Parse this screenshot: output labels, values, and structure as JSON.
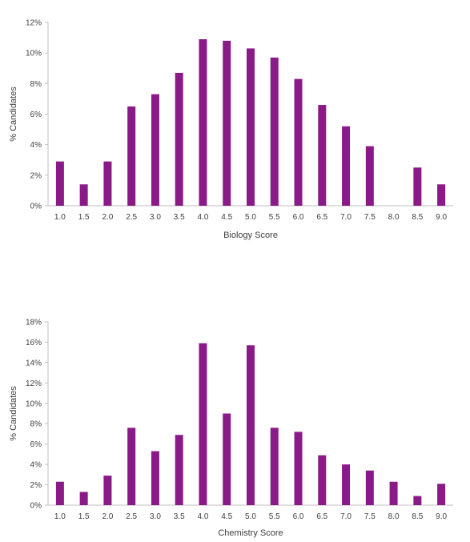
{
  "chart_data": [
    {
      "type": "bar",
      "xlabel": "Biology Score",
      "ylabel": "% Candidates",
      "categories": [
        "1.0",
        "1.5",
        "2.0",
        "2.5",
        "3.0",
        "3.5",
        "4.0",
        "4.5",
        "5.0",
        "5.5",
        "6.0",
        "6.5",
        "7.0",
        "7.5",
        "8.0",
        "8.5",
        "9.0"
      ],
      "values": [
        2.9,
        1.4,
        2.9,
        6.5,
        7.3,
        8.7,
        10.9,
        10.8,
        10.3,
        9.7,
        8.3,
        6.6,
        5.2,
        3.9,
        0,
        2.5,
        1.4
      ],
      "ylim": [
        0,
        12
      ],
      "yticks": [
        0,
        2,
        4,
        6,
        8,
        10,
        12
      ],
      "ytick_labels": [
        "0%",
        "2%",
        "4%",
        "6%",
        "8%",
        "10%",
        "12%"
      ],
      "color": "#8B1A89",
      "grid": false,
      "legend": "none"
    },
    {
      "type": "bar",
      "xlabel": "Chemistry Score",
      "ylabel": "% Candidates",
      "categories": [
        "1.0",
        "1.5",
        "2.0",
        "2.5",
        "3.0",
        "3.5",
        "4.0",
        "4.5",
        "5.0",
        "5.5",
        "6.0",
        "6.5",
        "7.0",
        "7.5",
        "8.0",
        "8.5",
        "9.0"
      ],
      "values": [
        2.3,
        1.3,
        2.9,
        7.6,
        5.3,
        6.9,
        15.9,
        9.0,
        15.7,
        7.6,
        7.2,
        4.9,
        4.0,
        3.4,
        2.3,
        0.9,
        2.1
      ],
      "ylim": [
        0,
        18
      ],
      "yticks": [
        0,
        2,
        4,
        6,
        8,
        10,
        12,
        14,
        16,
        18
      ],
      "ytick_labels": [
        "0%",
        "2%",
        "4%",
        "6%",
        "8%",
        "10%",
        "12%",
        "14%",
        "16%",
        "18%"
      ],
      "color": "#8B1A89",
      "grid": false,
      "legend": "none"
    }
  ]
}
